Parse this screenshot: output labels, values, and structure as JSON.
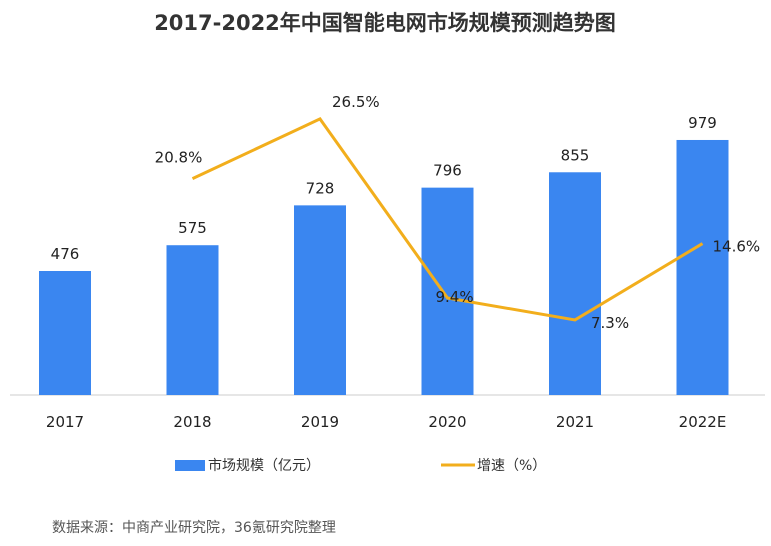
{
  "chart_data": {
    "type": "bar+line",
    "title": "2017-2022年中国智能电网市场规模预测趋势图",
    "categories": [
      "2017",
      "2018",
      "2019",
      "2020",
      "2021",
      "2022E"
    ],
    "series": [
      {
        "name": "市场规模（亿元）",
        "type": "bar",
        "values": [
          476,
          575,
          728,
          796,
          855,
          979
        ],
        "labels": [
          "476",
          "575",
          "728",
          "796",
          "855",
          "979"
        ],
        "color": "#3a86f0"
      },
      {
        "name": "增速（%）",
        "type": "line",
        "values": [
          null,
          20.8,
          26.5,
          9.4,
          7.3,
          14.6
        ],
        "labels": [
          "",
          "20.8%",
          "26.5%",
          "9.4%",
          "7.3%",
          "14.6%"
        ],
        "color": "#f2ae1c"
      }
    ],
    "legend": "bottom",
    "grid": false,
    "source": "数据来源：中商产业研究院，36氪研究院整理"
  }
}
